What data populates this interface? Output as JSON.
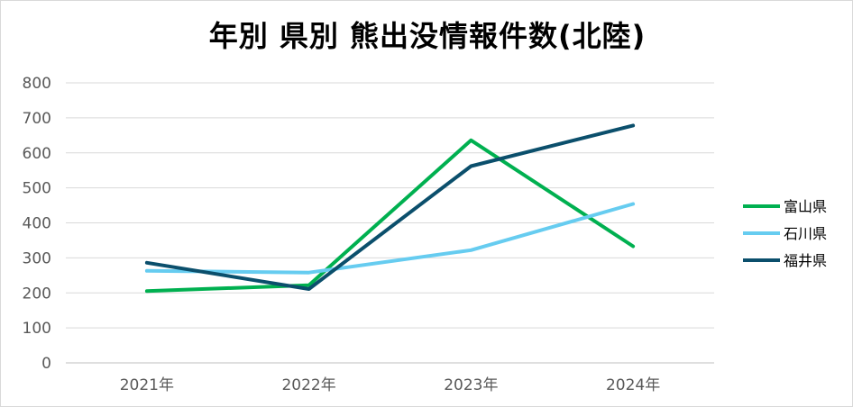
{
  "chart_data": {
    "type": "line",
    "title": "年別 県別 熊出没情報件数(北陸)",
    "xlabel": "",
    "ylabel": "",
    "categories": [
      "2021年",
      "2022年",
      "2023年",
      "2024年"
    ],
    "ylim": [
      0,
      800
    ],
    "yticks": [
      0,
      100,
      200,
      300,
      400,
      500,
      600,
      700,
      800
    ],
    "grid": true,
    "legend_position": "right",
    "series": [
      {
        "name": "富山県",
        "color": "#00b050",
        "values": [
          205,
          222,
          636,
          333
        ]
      },
      {
        "name": "石川県",
        "color": "#66ccf0",
        "values": [
          263,
          258,
          322,
          454
        ]
      },
      {
        "name": "福井県",
        "color": "#0b4f6c",
        "values": [
          286,
          211,
          562,
          678
        ]
      }
    ]
  }
}
